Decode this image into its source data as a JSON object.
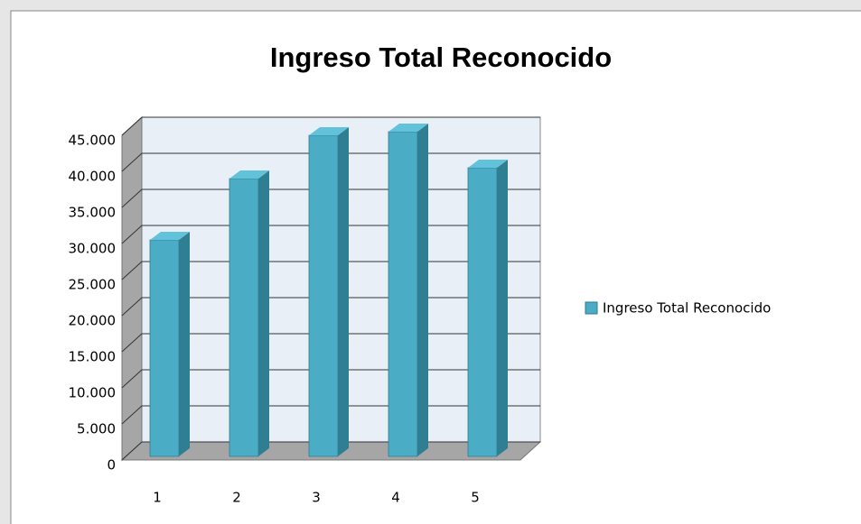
{
  "chart_data": {
    "type": "bar3d",
    "title": "Ingreso Total Reconocido",
    "categories": [
      "1",
      "2",
      "3",
      "4",
      "5"
    ],
    "series": [
      {
        "name": "Ingreso Total Reconocido",
        "color": "#4bacc6",
        "values": [
          30000,
          38500,
          44500,
          45000,
          40000
        ]
      }
    ],
    "ylim": [
      0,
      45000
    ],
    "yticks": [
      0,
      {
        "value": 5000,
        "label": "5.000"
      },
      {
        "value": 10000,
        "label": "10.000"
      },
      {
        "value": 15000,
        "label": "15.000"
      },
      {
        "value": 20000,
        "label": "20.000"
      },
      {
        "value": 25000,
        "label": "25.000"
      },
      {
        "value": 30000,
        "label": "30.000"
      },
      {
        "value": 35000,
        "label": "35.000"
      },
      {
        "value": 40000,
        "label": "40.000"
      },
      {
        "value": 45000,
        "label": "45.000"
      }
    ],
    "grid": true,
    "legend": "right"
  }
}
